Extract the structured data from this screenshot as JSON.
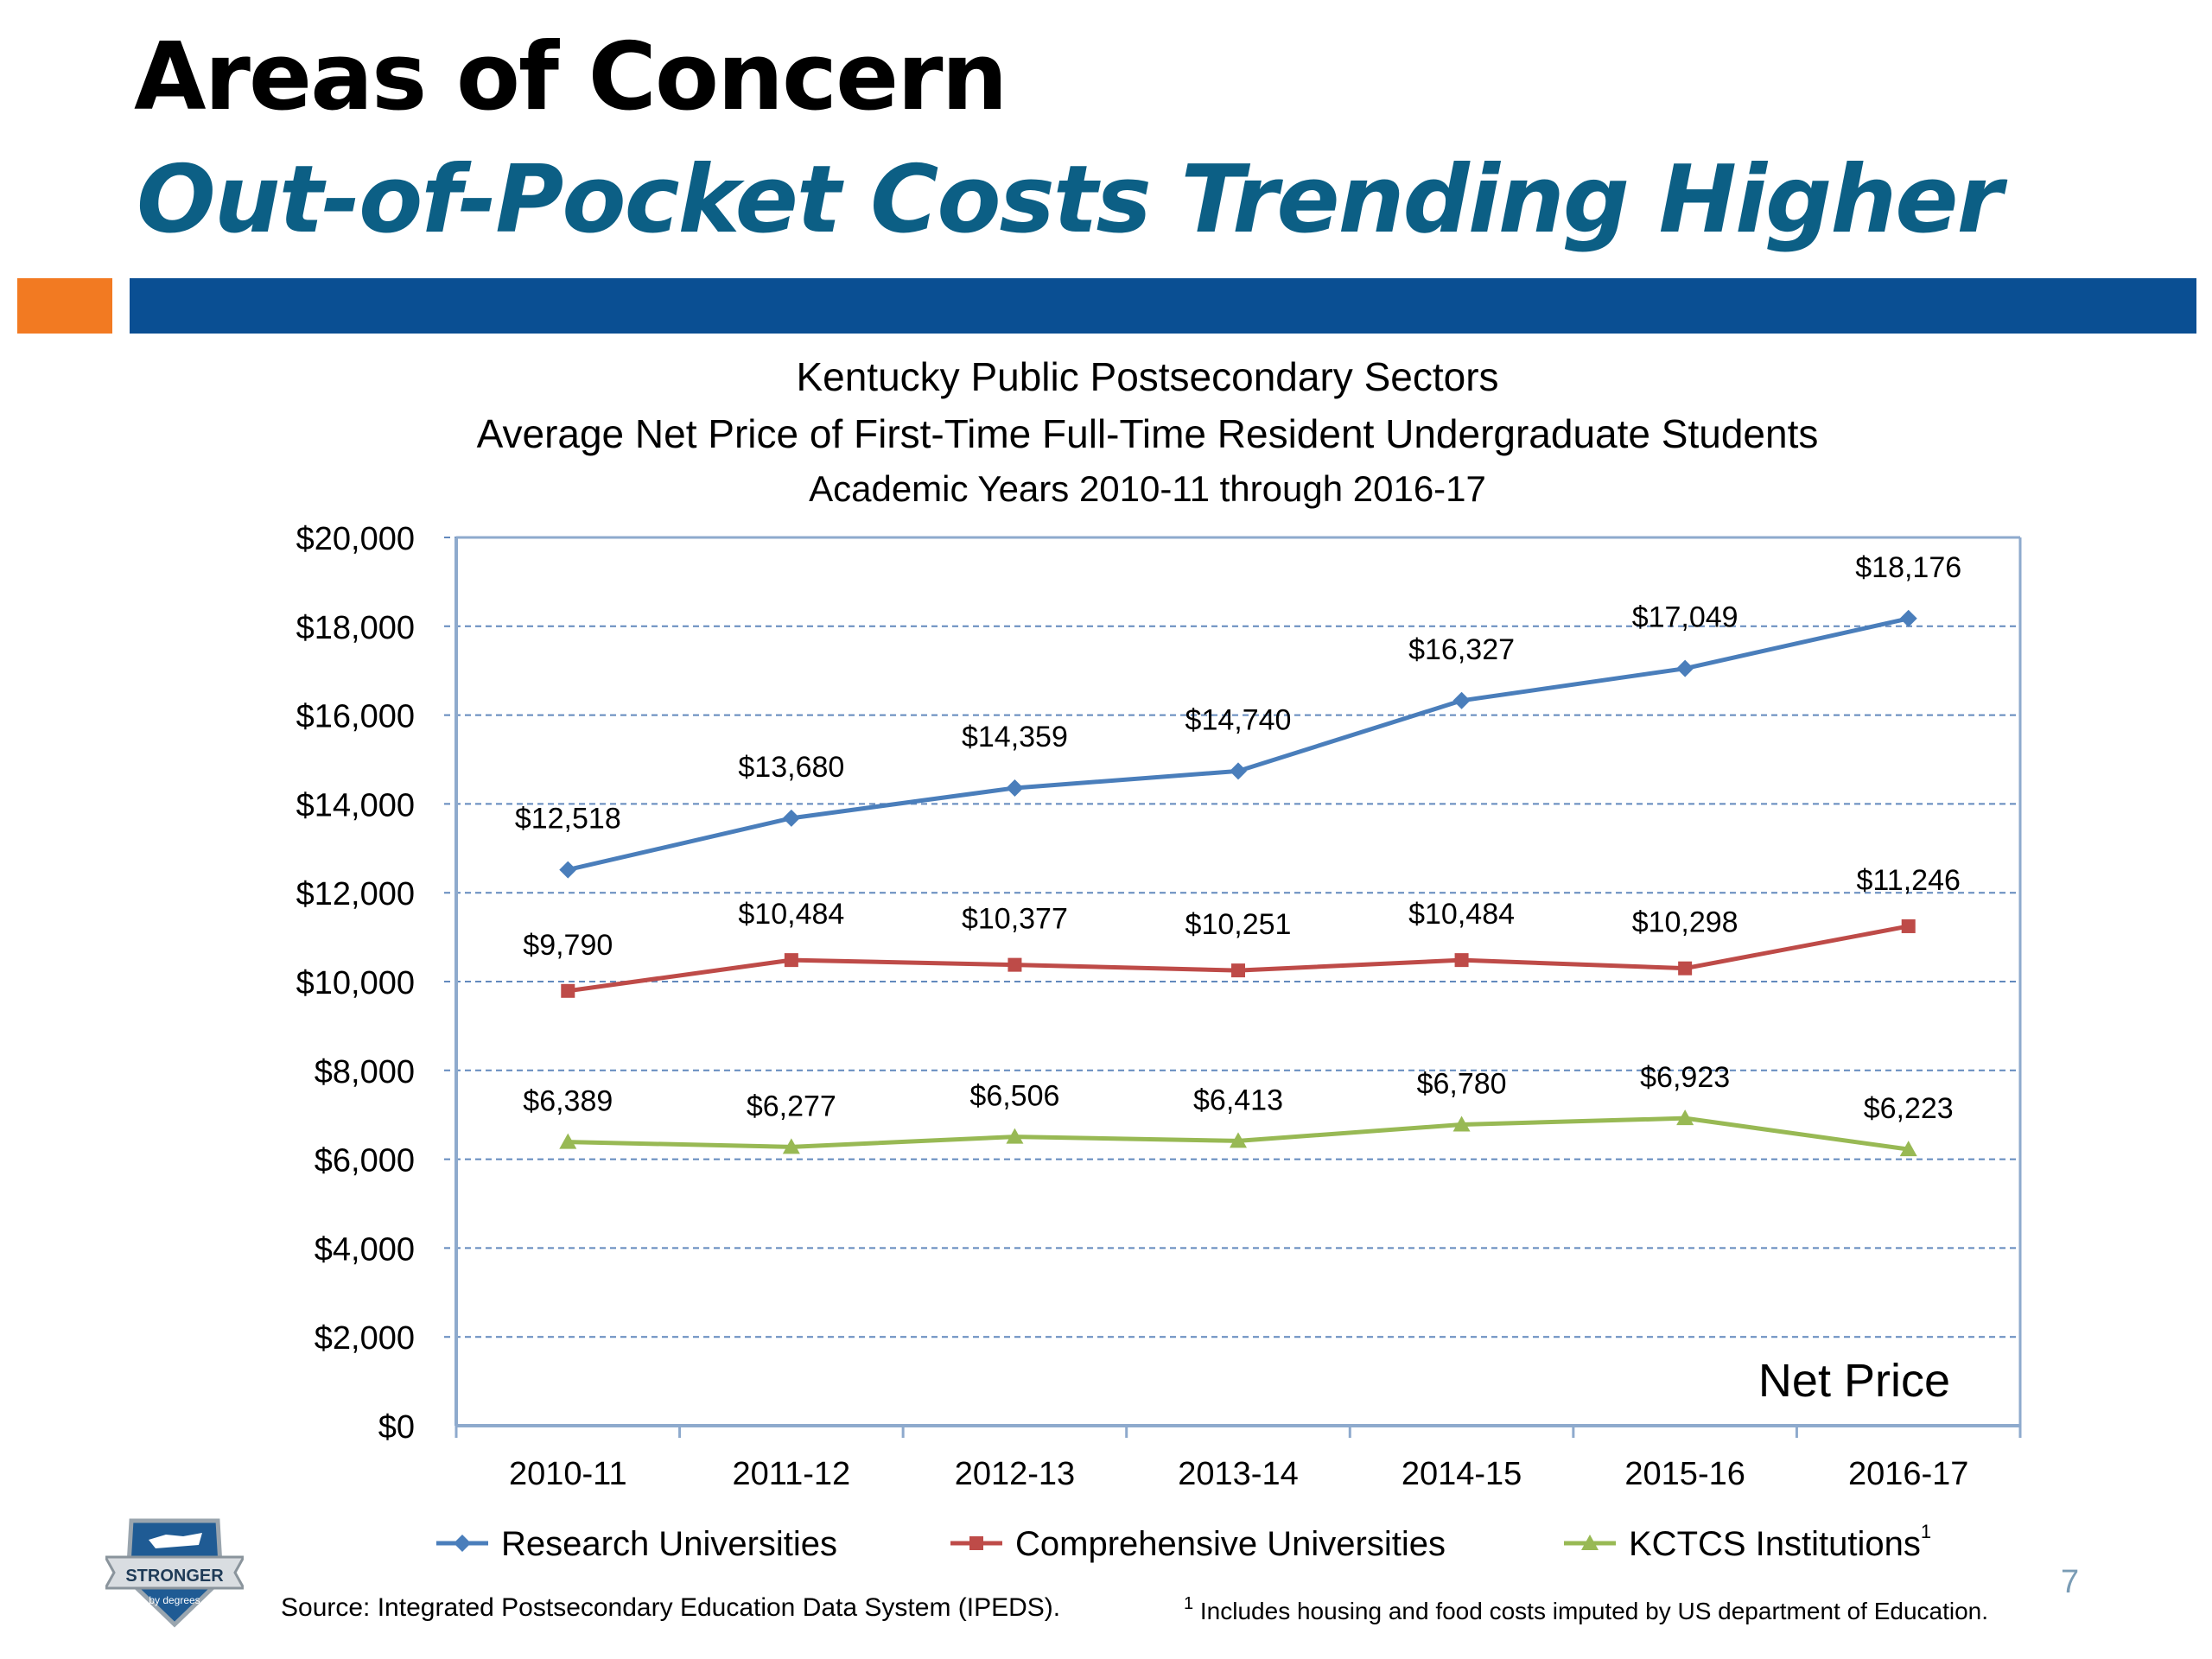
{
  "slide": {
    "title": "Areas of Concern",
    "subtitle": "Out-of-Pocket Costs Trending Higher",
    "page_number": "7",
    "logo_text": "STRONGER",
    "logo_subtext": "by degrees",
    "source_note": "Source:  Integrated Postsecondary Education Data System (IPEDS).",
    "footnote_marker": "1",
    "footnote_text": " Includes housing  and food  costs imputed by US department of Education."
  },
  "colors": {
    "title": "#000000",
    "subtitle": "#0c5f85",
    "accent_orange": "#f27a22",
    "accent_blue": "#0a4f93",
    "gridline": "#2e62a8",
    "page_number": "#7a9cb5"
  },
  "chart_data": {
    "type": "line",
    "title_lines": [
      "Kentucky Public Postsecondary Sectors",
      "Average Net Price of First-Time Full-Time Resident Undergraduate Students",
      "Academic Years  2010-11 through  2016-17"
    ],
    "annotation": "Net Price",
    "categories": [
      "2010-11",
      "2011-12",
      "2012-13",
      "2013-14",
      "2014-15",
      "2015-16",
      "2016-17"
    ],
    "ylim": [
      0,
      20000
    ],
    "yticks": [
      {
        "value": 0,
        "label": "$0"
      },
      {
        "value": 2000,
        "label": "$2,000"
      },
      {
        "value": 4000,
        "label": "$4,000"
      },
      {
        "value": 6000,
        "label": "$6,000"
      },
      {
        "value": 8000,
        "label": "$8,000"
      },
      {
        "value": 10000,
        "label": "$10,000"
      },
      {
        "value": 12000,
        "label": "$12,000"
      },
      {
        "value": 14000,
        "label": "$14,000"
      },
      {
        "value": 16000,
        "label": "$16,000"
      },
      {
        "value": 18000,
        "label": "$18,000"
      },
      {
        "value": 20000,
        "label": "$20,000"
      }
    ],
    "grid": true,
    "legend_position": "bottom",
    "series": [
      {
        "name": "Research Universities",
        "color": "#4a7ebb",
        "marker": "diamond",
        "values": [
          12518,
          13680,
          14359,
          14740,
          16327,
          17049,
          18176
        ],
        "labels": [
          "$12,518",
          "$13,680",
          "$14,359",
          "$14,740",
          "$16,327",
          "$17,049",
          "$18,176"
        ]
      },
      {
        "name": "Comprehensive Universities",
        "color": "#be4b48",
        "marker": "square",
        "values": [
          9790,
          10484,
          10377,
          10251,
          10484,
          10298,
          11246
        ],
        "labels": [
          "$9,790",
          "$10,484",
          "$10,377",
          "$10,251",
          "$10,484",
          "$10,298",
          "$11,246"
        ]
      },
      {
        "name": "KCTCS Institutions",
        "name_superscript": "1",
        "color": "#98b954",
        "marker": "triangle",
        "values": [
          6389,
          6277,
          6506,
          6413,
          6780,
          6923,
          6223
        ],
        "labels": [
          "$6,389",
          "$6,277",
          "$6,506",
          "$6,413",
          "$6,780",
          "$6,923",
          "$6,223"
        ]
      }
    ]
  }
}
